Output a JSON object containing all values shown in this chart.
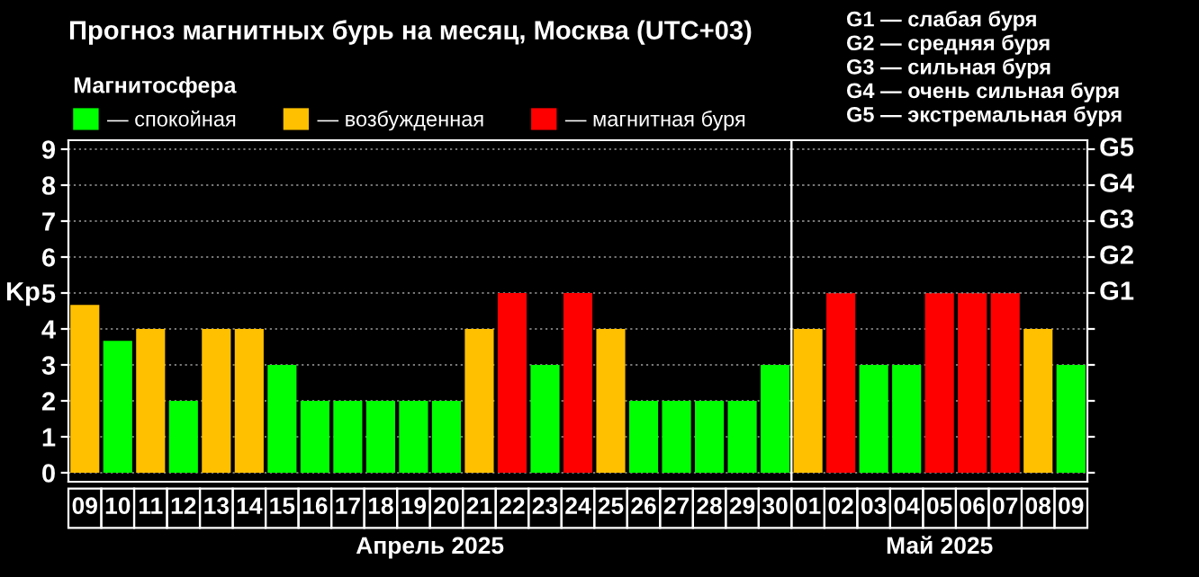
{
  "chart_data": [
    {
      "type": "bar",
      "title": "Прогноз магнитных бурь на месяц, Москва (UTC+03)",
      "legend_title": "Магнитосфера",
      "ylabel": "Kp",
      "categories": [
        "09",
        "10",
        "11",
        "12",
        "13",
        "14",
        "15",
        "16",
        "17",
        "18",
        "19",
        "20",
        "21",
        "22",
        "23",
        "24",
        "25",
        "26",
        "27",
        "28",
        "29",
        "30"
      ],
      "series": [
        {
          "name": "— спокойная",
          "color": "#00ff00",
          "values": [
            null,
            3.67,
            null,
            2,
            null,
            null,
            3,
            2,
            2,
            2,
            2,
            2,
            null,
            null,
            3,
            null,
            null,
            2,
            2,
            2,
            2,
            3
          ]
        },
        {
          "name": "— возбужденная",
          "color": "#ffc000",
          "values": [
            4.67,
            null,
            4,
            null,
            4,
            4,
            null,
            null,
            null,
            null,
            null,
            null,
            4,
            null,
            null,
            null,
            4,
            null,
            null,
            null,
            null,
            null
          ]
        },
        {
          "name": "— магнитная буря",
          "color": "#ff0000",
          "values": [
            null,
            null,
            null,
            null,
            null,
            null,
            null,
            null,
            null,
            null,
            null,
            null,
            null,
            5,
            null,
            5,
            null,
            null,
            null,
            null,
            null,
            null
          ]
        }
      ],
      "ylim": [
        -0.25,
        9.25
      ],
      "yticks": [
        0,
        1,
        2,
        3,
        4,
        5,
        6,
        7,
        8,
        9
      ],
      "grid": "y",
      "legend": "top left",
      "annotations": [
        "Апрель 2025"
      ]
    },
    {
      "type": "bar",
      "categories": [
        "01",
        "02",
        "03",
        "04",
        "05",
        "06",
        "07",
        "08",
        "09"
      ],
      "series": [
        {
          "color": "#00ff00",
          "values": [
            null,
            null,
            3,
            3,
            null,
            null,
            null,
            null,
            3
          ]
        },
        {
          "color": "#ffc000",
          "values": [
            4,
            null,
            null,
            null,
            null,
            null,
            null,
            4,
            null
          ]
        },
        {
          "color": "#ff0000",
          "values": [
            null,
            5,
            null,
            null,
            5,
            5,
            5,
            null,
            null
          ]
        }
      ],
      "ylim": [
        -0.25,
        9.25
      ],
      "yticks": [
        0,
        1,
        2,
        3,
        4,
        5,
        6,
        7,
        8,
        9
      ],
      "grid": "y",
      "tick_labels": "x",
      "ref_lines": [
        {
          "axis": "y",
          "value": 5,
          "label": "G1"
        },
        {
          "axis": "y",
          "value": 6,
          "label": "G2"
        },
        {
          "axis": "y",
          "value": 7,
          "label": "G3"
        },
        {
          "axis": "y",
          "value": 8,
          "label": "G4"
        },
        {
          "axis": "y",
          "value": 9,
          "label": "G5"
        }
      ],
      "annotations": [
        "Май 2025",
        "G1 — слабая буря\nG2 — средняя буря\nG3 — сильная буря\nG4 — очень сильная буря\nG5 — экстремальная буря"
      ]
    }
  ]
}
